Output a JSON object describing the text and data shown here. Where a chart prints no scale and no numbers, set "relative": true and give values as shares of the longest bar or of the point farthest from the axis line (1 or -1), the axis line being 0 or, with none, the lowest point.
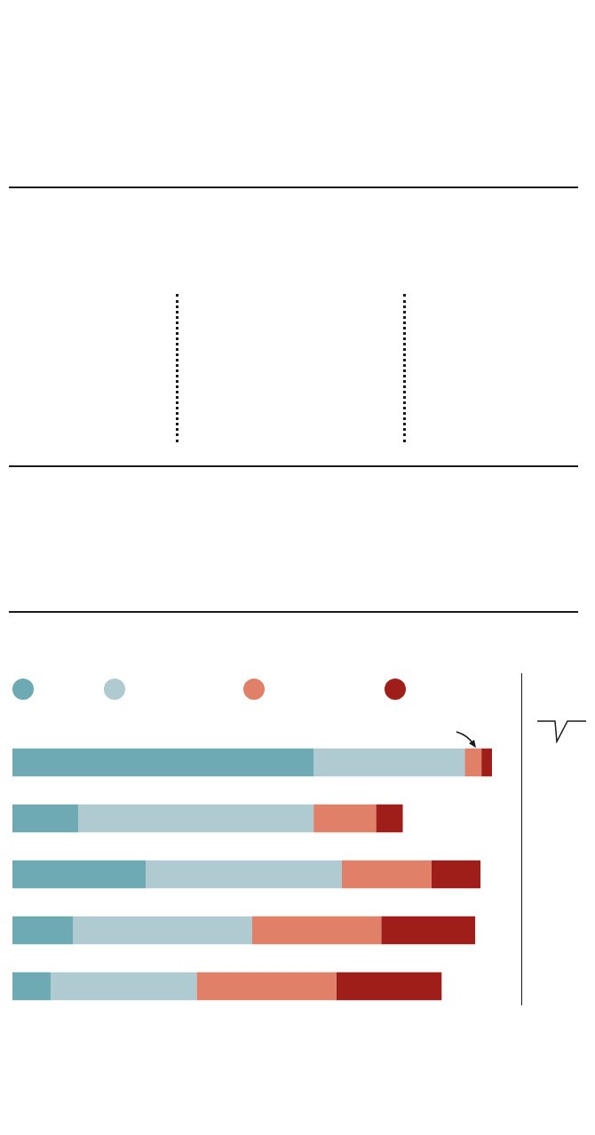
{
  "chart_data": {
    "type": "bar",
    "orientation": "horizontal",
    "stacked": true,
    "relative": true,
    "categories": [
      null,
      null,
      null,
      null,
      null
    ],
    "series": [
      {
        "color": "#6eaab3",
        "values": [
          0.628,
          0.137,
          0.278,
          0.126,
          0.08
        ]
      },
      {
        "color": "#afcbd1",
        "values": [
          0.315,
          0.491,
          0.409,
          0.374,
          0.304
        ]
      },
      {
        "color": "#e08068",
        "values": [
          0.035,
          0.13,
          0.187,
          0.269,
          0.291
        ]
      },
      {
        "color": "#a01e1a",
        "values": [
          0.022,
          0.056,
          0.102,
          0.196,
          0.22
        ]
      }
    ]
  }
}
